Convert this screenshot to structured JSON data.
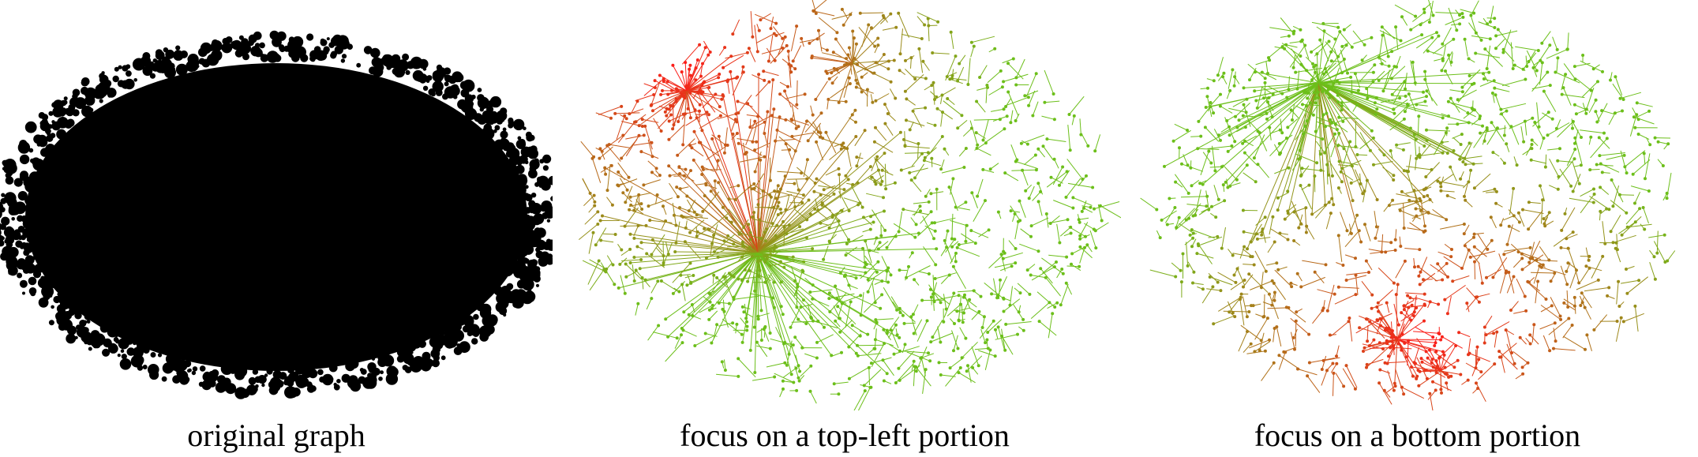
{
  "panels": [
    {
      "caption": "original graph",
      "style": "dense-black",
      "color": "#000000"
    },
    {
      "caption": "focus on a top-left portion",
      "style": "focus",
      "focus": "top-left",
      "focus_color": "#ff1a1a",
      "context_color": "#6cbf1a"
    },
    {
      "caption": "focus on a bottom portion",
      "style": "focus",
      "focus": "bottom",
      "focus_color": "#ff1a1a",
      "context_color": "#6cbf1a"
    }
  ]
}
